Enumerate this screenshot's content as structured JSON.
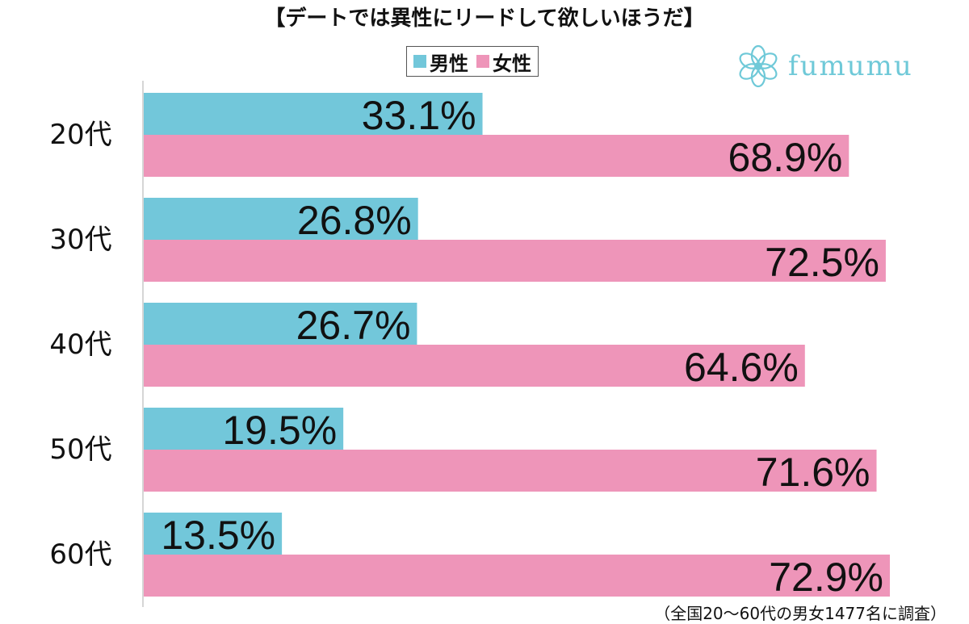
{
  "page": {
    "title": "【デートでは異性にリードして欲しいほうだ】",
    "footnote": "（全国20～60代の男女1477名に調査）",
    "logo_text": "fumumu",
    "logo_icon": "flower-icon"
  },
  "colors": {
    "male": "#72c7da",
    "female": "#ee95b9",
    "logo": "#6fc9d8",
    "axis": "#c8c8c8"
  },
  "chart_data": {
    "type": "bar",
    "orientation": "horizontal",
    "title": "【デートでは異性にリードして欲しいほうだ】",
    "categories": [
      "20代",
      "30代",
      "40代",
      "50代",
      "60代"
    ],
    "series": [
      {
        "name": "男性",
        "values": [
          33.1,
          26.8,
          26.7,
          19.5,
          13.5
        ],
        "labels": [
          "33.1%",
          "26.8%",
          "26.7%",
          "19.5%",
          "13.5%"
        ]
      },
      {
        "name": "女性",
        "values": [
          68.9,
          72.5,
          64.6,
          71.6,
          72.9
        ],
        "labels": [
          "68.9%",
          "72.5%",
          "64.6%",
          "71.6%",
          "72.9%"
        ]
      }
    ],
    "unit": "%",
    "xlim": [
      0,
      72.9
    ],
    "grid": false,
    "legend_position": "top-center"
  }
}
